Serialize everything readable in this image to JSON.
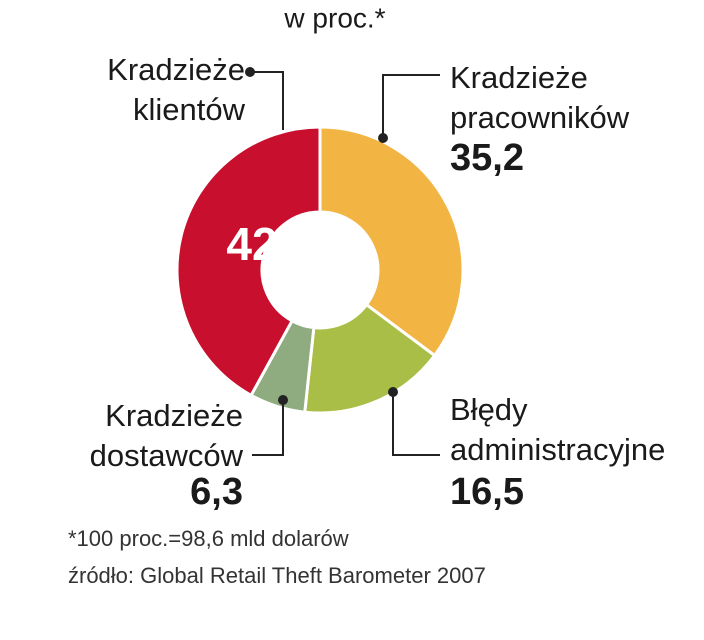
{
  "chart_data": {
    "type": "donut",
    "title": "w proc.*",
    "categories": [
      "Kradzieże pracowników",
      "Błędy administracyjne",
      "Kradzieże dostawców",
      "Kradzieże klientów"
    ],
    "values": [
      35.2,
      16.5,
      6.3,
      42
    ],
    "value_labels": [
      "35,2",
      "16,5",
      "6,3",
      "42"
    ],
    "colors": [
      "#f2b544",
      "#a9be46",
      "#8fab80",
      "#c8102e"
    ],
    "note": "*100 proc.=98,6 mld dolarów",
    "source": "źródło: Global Retail Theft Barometer 2007"
  }
}
